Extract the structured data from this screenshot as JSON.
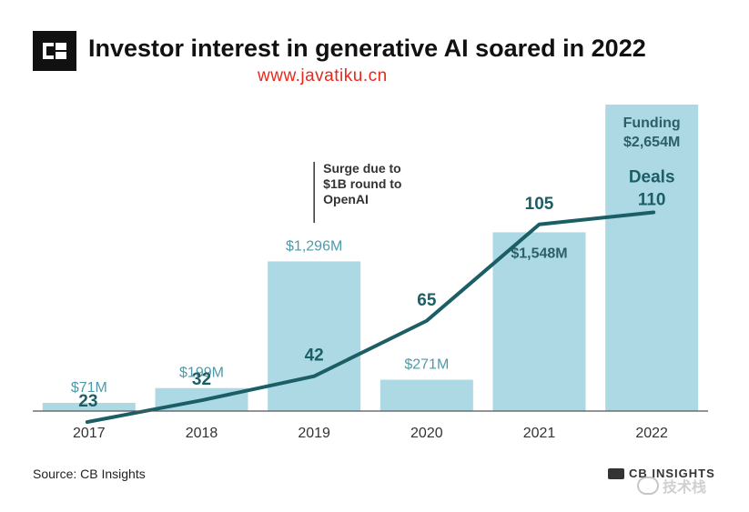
{
  "header": {
    "title": "Investor interest in generative AI soared in 2022",
    "watermark": "www.javatiku.cn"
  },
  "footer": {
    "source": "Source: CB Insights",
    "brand": "CB INSIGHTS",
    "badge": "技术栈"
  },
  "colors": {
    "bar": "#acd9e4",
    "line": "#1b5e66",
    "label": "#1b5e66",
    "barLabel": "#4f9aa8",
    "barLabelDark": "#2d5f68",
    "axis": "#555555",
    "annotation": "#333333"
  },
  "icons": {
    "logo": "cb-insights-logo-icon"
  },
  "chart_data": {
    "type": "bar",
    "title": "Investor interest in generative AI soared in 2022",
    "categories": [
      "2017",
      "2018",
      "2019",
      "2020",
      "2021",
      "2022"
    ],
    "series": [
      {
        "name": "Funding",
        "values": [
          71,
          199,
          1296,
          271,
          1548,
          2654
        ],
        "labels": [
          "$71M",
          "$199M",
          "$1,296M",
          "$271M",
          "$1,548M",
          "$2,654M"
        ]
      },
      {
        "name": "Deals",
        "type": "line",
        "values": [
          23,
          32,
          42,
          65,
          105,
          110
        ],
        "labels": [
          "23",
          "32",
          "42",
          "65",
          "105",
          "110"
        ]
      }
    ],
    "annotation": {
      "category": "2019",
      "lines": [
        "Surge due to",
        "$1B round to",
        "OpenAI"
      ]
    },
    "funding_ylim": [
      0,
      2654
    ],
    "deals_ylim": [
      0,
      130
    ],
    "grid": false,
    "legend": "inline-labels on 2022 bar"
  }
}
